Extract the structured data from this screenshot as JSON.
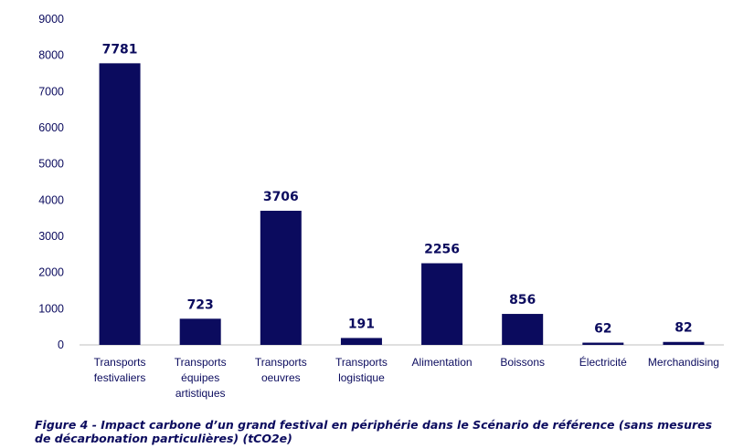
{
  "chart_data": {
    "type": "bar",
    "categories": [
      [
        "Transports",
        "festivaliers"
      ],
      [
        "Transports",
        "équipes",
        "artistiques"
      ],
      [
        "Transports",
        "oeuvres"
      ],
      [
        "Transports",
        "logistique"
      ],
      [
        "Alimentation"
      ],
      [
        "Boissons"
      ],
      [
        "Électricité"
      ],
      [
        "Merchandising"
      ]
    ],
    "values": [
      7781,
      723,
      3706,
      191,
      2256,
      856,
      62,
      82
    ],
    "data_labels": [
      "7781",
      "723",
      "3706",
      "191",
      "2256",
      "856",
      "62",
      "82"
    ],
    "yticks": [
      "0",
      "1000",
      "2000",
      "3000",
      "4000",
      "5000",
      "6000",
      "7000",
      "8000",
      "9000"
    ],
    "ylim": [
      0,
      9000
    ],
    "title": "",
    "xlabel": "",
    "ylabel": "",
    "grid": false,
    "bar_color": "#0b0b5e",
    "axis_color": "#bfbfbf"
  },
  "caption": "Figure 4 - Impact carbone d’un grand festival en périphérie dans le Scénario de référence (sans mesures de décarbonation particulières) (tCO2e)"
}
